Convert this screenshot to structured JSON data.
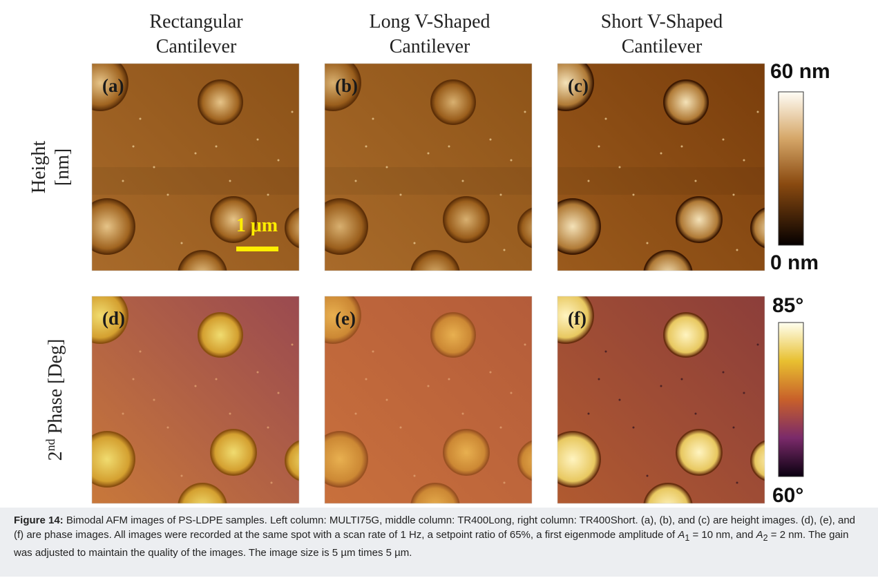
{
  "columns": [
    [
      "Rectangular",
      "Cantilever"
    ],
    [
      "Long V-Shaped",
      "Cantilever"
    ],
    [
      "Short V-Shaped",
      "Cantilever"
    ]
  ],
  "rows": [
    {
      "label": [
        "Height",
        "[nm]"
      ]
    },
    {
      "label": [
        "2",
        "nd",
        " Phase [Deg]"
      ]
    }
  ],
  "panels": [
    "(a)",
    "(b)",
    "(c)",
    "(d)",
    "(e)",
    "(f)"
  ],
  "scale_bar": "1 μm",
  "colorbars": [
    {
      "max": "60 nm",
      "min": "0 nm"
    },
    {
      "max": "85°",
      "min": "60°"
    }
  ],
  "caption": {
    "label": "Figure 14:",
    "text": [
      "Bimodal AFM images of PS-LDPE samples. Left column: MULTI75G, middle column: TR400Long, right column: TR400Short. (a), (b), and (c) are height images. (d), (e), and (f) are phase images. All images were recorded at the same spot with a scan rate of 1 Hz, a setpoint ratio of 65%, a first eigenmode amplitude of ",
      "A",
      "1",
      " = 10 nm, and ",
      "A",
      "2",
      " = 2 nm. The gain was adjusted to maintain the quality of the images. The image size is 5 µm times 5 µm."
    ]
  }
}
